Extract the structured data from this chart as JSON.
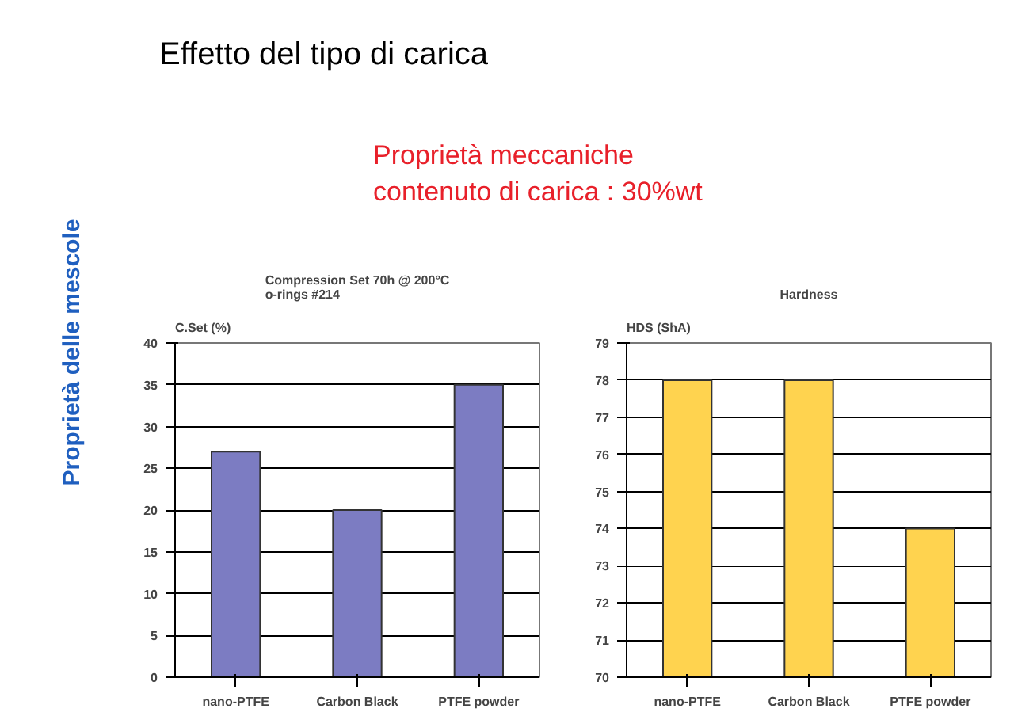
{
  "chart_data": [
    {
      "type": "other",
      "title": "Effetto del tipo di carica",
      "subtitle": "Proprietà meccaniche\ncontenuto di carica : 30%wt",
      "annotations": [
        "Proprietà delle mescole"
      ]
    },
    {
      "type": "bar",
      "title": "Compression Set 70h @ 200°C\no-rings #214",
      "ylabel": "C.Set (%)",
      "categories": [
        "nano-PTFE",
        "Carbon Black",
        "PTFE powder"
      ],
      "values": [
        27,
        20,
        35
      ],
      "color": "#7c7cc2",
      "ylim": [
        0,
        40
      ],
      "yticks": [
        0,
        5,
        10,
        15,
        20,
        25,
        30,
        35,
        40
      ],
      "grid": "y"
    },
    {
      "type": "bar",
      "title": "Hardness",
      "ylabel": "HDS (ShA)",
      "categories": [
        "nano-PTFE",
        "Carbon Black",
        "PTFE powder"
      ],
      "values": [
        78,
        78,
        74
      ],
      "color": "#ffd34f",
      "ylim": [
        70,
        79
      ],
      "yticks": [
        70,
        71,
        72,
        73,
        74,
        75,
        76,
        77,
        78,
        79
      ],
      "grid": "y"
    }
  ]
}
